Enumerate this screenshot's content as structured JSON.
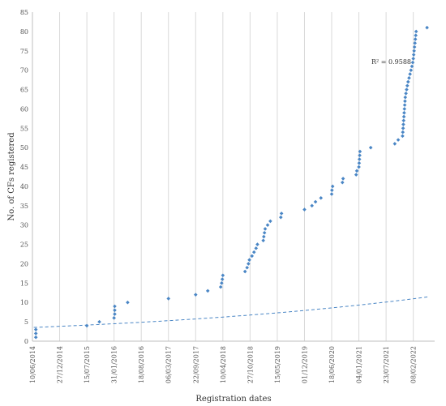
{
  "chart_data": {
    "type": "scatter",
    "title": "",
    "xlabel": "Registration dates",
    "ylabel": "No. of CFs registered",
    "ylim": [
      0,
      85
    ],
    "xlim": [
      "2014-06-10",
      "2022-07-15"
    ],
    "yticks": [
      0,
      5,
      10,
      15,
      20,
      25,
      30,
      35,
      40,
      45,
      50,
      55,
      60,
      65,
      70,
      75,
      80,
      85
    ],
    "xticks": [
      {
        "date": "2014-06-10",
        "label": "10/06/2014"
      },
      {
        "date": "2014-12-27",
        "label": "27/12/2014"
      },
      {
        "date": "2015-07-15",
        "label": "15/07/2015"
      },
      {
        "date": "2016-01-31",
        "label": "31/01/2016"
      },
      {
        "date": "2016-08-18",
        "label": "18/08/2016"
      },
      {
        "date": "2017-03-06",
        "label": "06/03/2017"
      },
      {
        "date": "2017-09-22",
        "label": "22/09/2017"
      },
      {
        "date": "2018-04-10",
        "label": "10/04/2018"
      },
      {
        "date": "2018-10-27",
        "label": "27/10/2018"
      },
      {
        "date": "2019-05-15",
        "label": "15/05/2019"
      },
      {
        "date": "2019-12-01",
        "label": "01/12/2019"
      },
      {
        "date": "2020-06-18",
        "label": "18/06/2020"
      },
      {
        "date": "2021-01-04",
        "label": "04/01/2021"
      },
      {
        "date": "2021-07-23",
        "label": "23/07/2021"
      },
      {
        "date": "2022-02-08",
        "label": "08/02/2022"
      }
    ],
    "grid": "vertical",
    "marker_color": "#4a86c5",
    "trendline": {
      "type": "exponential",
      "a": 3.55,
      "b": 0.000404,
      "color": "#4a86c5",
      "style": "dashed",
      "r2_label": "R² = 0.9588"
    },
    "points": [
      {
        "x": "2014-07-05",
        "y": 1
      },
      {
        "x": "2014-07-05",
        "y": 2
      },
      {
        "x": "2014-07-05",
        "y": 3
      },
      {
        "x": "2015-07-15",
        "y": 4
      },
      {
        "x": "2015-10-15",
        "y": 5
      },
      {
        "x": "2016-01-31",
        "y": 6
      },
      {
        "x": "2016-02-05",
        "y": 7
      },
      {
        "x": "2016-02-05",
        "y": 8
      },
      {
        "x": "2016-02-05",
        "y": 9
      },
      {
        "x": "2016-05-10",
        "y": 10
      },
      {
        "x": "2017-03-06",
        "y": 11
      },
      {
        "x": "2017-09-22",
        "y": 12
      },
      {
        "x": "2017-12-20",
        "y": 13
      },
      {
        "x": "2018-03-25",
        "y": 14
      },
      {
        "x": "2018-04-01",
        "y": 15
      },
      {
        "x": "2018-04-06",
        "y": 16
      },
      {
        "x": "2018-04-10",
        "y": 17
      },
      {
        "x": "2018-09-20",
        "y": 18
      },
      {
        "x": "2018-10-05",
        "y": 19
      },
      {
        "x": "2018-10-15",
        "y": 20
      },
      {
        "x": "2018-10-22",
        "y": 21
      },
      {
        "x": "2018-11-10",
        "y": 22
      },
      {
        "x": "2018-11-25",
        "y": 23
      },
      {
        "x": "2018-12-10",
        "y": 24
      },
      {
        "x": "2018-12-20",
        "y": 25
      },
      {
        "x": "2019-02-01",
        "y": 26
      },
      {
        "x": "2019-02-05",
        "y": 27
      },
      {
        "x": "2019-02-10",
        "y": 28
      },
      {
        "x": "2019-02-15",
        "y": 29
      },
      {
        "x": "2019-03-05",
        "y": 30
      },
      {
        "x": "2019-03-25",
        "y": 31
      },
      {
        "x": "2019-06-10",
        "y": 32
      },
      {
        "x": "2019-06-15",
        "y": 33
      },
      {
        "x": "2019-12-01",
        "y": 34
      },
      {
        "x": "2020-01-25",
        "y": 35
      },
      {
        "x": "2020-02-20",
        "y": 36
      },
      {
        "x": "2020-03-31",
        "y": 37
      },
      {
        "x": "2020-06-18",
        "y": 38
      },
      {
        "x": "2020-06-20",
        "y": 39
      },
      {
        "x": "2020-06-25",
        "y": 40
      },
      {
        "x": "2020-09-05",
        "y": 41
      },
      {
        "x": "2020-09-10",
        "y": 42
      },
      {
        "x": "2020-12-15",
        "y": 43
      },
      {
        "x": "2020-12-20",
        "y": 44
      },
      {
        "x": "2021-01-04",
        "y": 45
      },
      {
        "x": "2021-01-06",
        "y": 46
      },
      {
        "x": "2021-01-08",
        "y": 47
      },
      {
        "x": "2021-01-10",
        "y": 48
      },
      {
        "x": "2021-01-12",
        "y": 49
      },
      {
        "x": "2021-04-01",
        "y": 50
      },
      {
        "x": "2021-09-25",
        "y": 51
      },
      {
        "x": "2021-10-20",
        "y": 52
      },
      {
        "x": "2021-11-21",
        "y": 53
      },
      {
        "x": "2021-11-23",
        "y": 54
      },
      {
        "x": "2021-11-25",
        "y": 55
      },
      {
        "x": "2021-11-27",
        "y": 56
      },
      {
        "x": "2021-11-29",
        "y": 57
      },
      {
        "x": "2021-12-01",
        "y": 58
      },
      {
        "x": "2021-12-03",
        "y": 59
      },
      {
        "x": "2021-12-05",
        "y": 60
      },
      {
        "x": "2021-12-07",
        "y": 61
      },
      {
        "x": "2021-12-09",
        "y": 62
      },
      {
        "x": "2021-12-11",
        "y": 63
      },
      {
        "x": "2021-12-16",
        "y": 64
      },
      {
        "x": "2021-12-21",
        "y": 65
      },
      {
        "x": "2021-12-26",
        "y": 66
      },
      {
        "x": "2022-01-01",
        "y": 67
      },
      {
        "x": "2022-01-08",
        "y": 68
      },
      {
        "x": "2022-01-15",
        "y": 69
      },
      {
        "x": "2022-01-22",
        "y": 70
      },
      {
        "x": "2022-01-29",
        "y": 71
      },
      {
        "x": "2022-02-04",
        "y": 72
      },
      {
        "x": "2022-02-08",
        "y": 73
      },
      {
        "x": "2022-02-11",
        "y": 74
      },
      {
        "x": "2022-02-14",
        "y": 75
      },
      {
        "x": "2022-02-17",
        "y": 76
      },
      {
        "x": "2022-02-20",
        "y": 77
      },
      {
        "x": "2022-02-23",
        "y": 78
      },
      {
        "x": "2022-02-26",
        "y": 79
      },
      {
        "x": "2022-03-01",
        "y": 80
      },
      {
        "x": "2022-05-20",
        "y": 81
      }
    ]
  }
}
